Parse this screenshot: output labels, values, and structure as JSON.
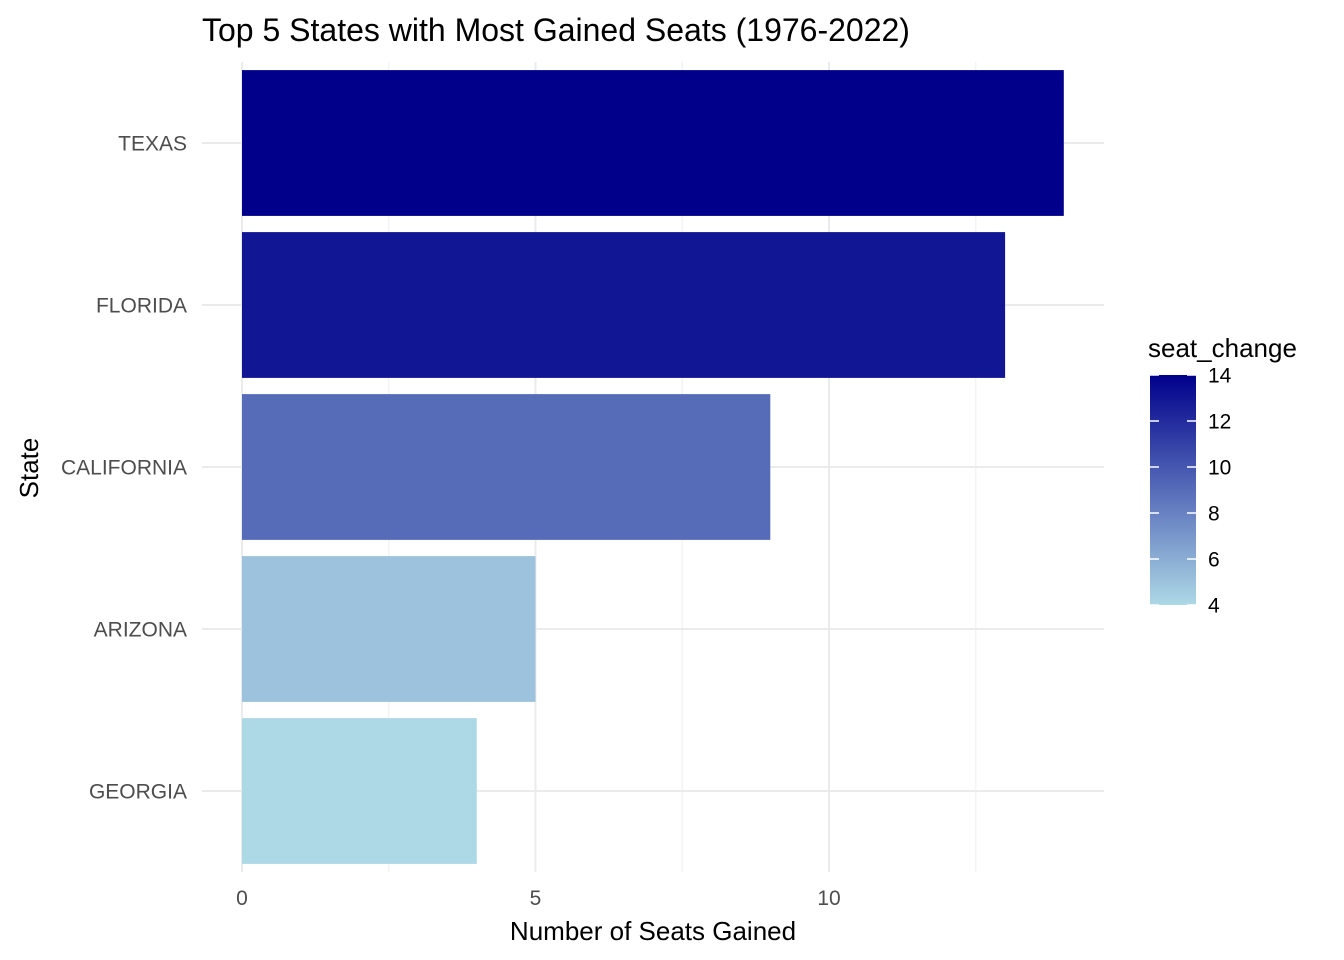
{
  "chart_data": {
    "type": "bar",
    "orientation": "horizontal",
    "title": "Top 5 States with Most Gained Seats (1976-2022)",
    "xlabel": "Number of Seats Gained",
    "ylabel": "State",
    "categories": [
      "TEXAS",
      "FLORIDA",
      "CALIFORNIA",
      "ARIZONA",
      "GEORGIA"
    ],
    "values": [
      14,
      13,
      9,
      5,
      4
    ],
    "xlim": [
      0,
      14.7
    ],
    "x_ticks": [
      0,
      5,
      10
    ],
    "x_tick_labels": [
      "0",
      "5",
      "10"
    ],
    "grid": true,
    "legend": {
      "title": "seat_change",
      "position": "right",
      "type": "colorbar",
      "range": [
        4,
        14
      ],
      "ticks": [
        4,
        6,
        8,
        10,
        12,
        14
      ],
      "tick_labels": [
        "4",
        "6",
        "8",
        "10",
        "12",
        "14"
      ],
      "low_color": "#ADD8E6",
      "high_color": "#00008B"
    }
  }
}
